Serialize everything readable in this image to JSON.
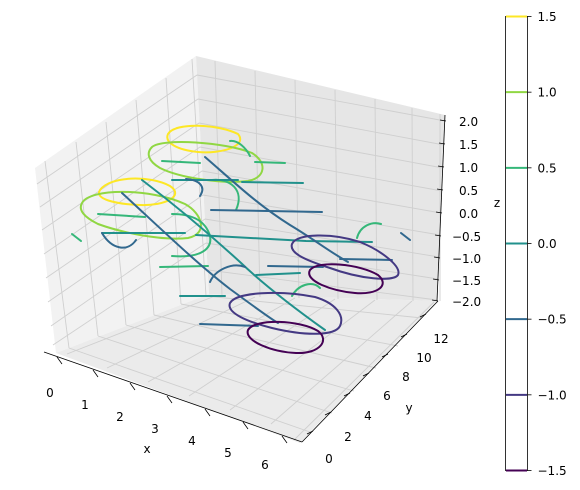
{
  "chart_data": {
    "type": "contour3d",
    "title": "",
    "xlabel": "x",
    "ylabel": "y",
    "zlabel": "z",
    "xlim": [
      -0.3,
      6.6
    ],
    "ylim": [
      -0.6,
      13.2
    ],
    "zlim": [
      -2.0,
      2.0
    ],
    "x_ticks": [
      "0",
      "1",
      "2",
      "3",
      "4",
      "5",
      "6"
    ],
    "y_ticks": [
      "0",
      "2",
      "4",
      "6",
      "8",
      "10",
      "12"
    ],
    "z_ticks": [
      "2.0",
      "1.5",
      "1.0",
      "0.5",
      "0.0",
      "−0.5",
      "−1.0",
      "−1.5",
      "−2.0"
    ],
    "grid": true,
    "colormap": "viridis",
    "contour_levels": [
      {
        "level": -1.5,
        "color": "#440154"
      },
      {
        "level": -1.0,
        "color": "#443983"
      },
      {
        "level": -0.5,
        "color": "#31688e"
      },
      {
        "level": 0.0,
        "color": "#21918c"
      },
      {
        "level": 0.5,
        "color": "#35b779"
      },
      {
        "level": 1.0,
        "color": "#90d743"
      },
      {
        "level": 1.5,
        "color": "#fde725"
      }
    ],
    "colorbar": {
      "placement": "right",
      "ticks": [
        "1.5",
        "1.0",
        "0.5",
        "0.0",
        "−0.5",
        "−1.0",
        "−1.5"
      ]
    }
  }
}
